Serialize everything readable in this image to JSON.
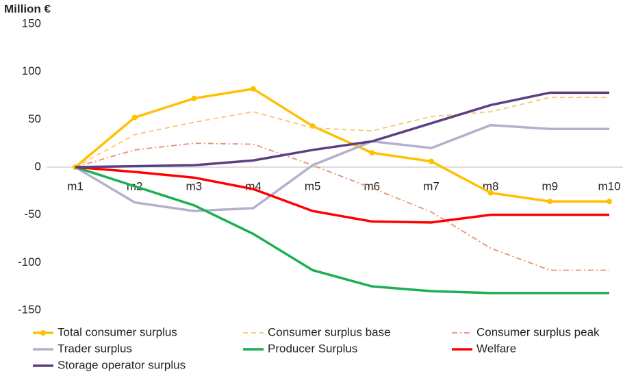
{
  "chart_data": {
    "type": "line",
    "title": "Million €",
    "categories": [
      "m1",
      "m2",
      "m3",
      "m4",
      "m5",
      "m6",
      "m7",
      "m8",
      "m9",
      "m10"
    ],
    "ylim": [
      -150,
      150
    ],
    "yticks": [
      -150,
      -100,
      -50,
      0,
      50,
      100,
      150
    ],
    "grid": false,
    "legend": "bottom",
    "series": [
      {
        "name": "Total consumer surplus",
        "color": "#ffc000",
        "dash": "solid",
        "markers": true,
        "values": [
          0,
          52,
          72,
          82,
          43,
          15,
          6,
          -27,
          -36,
          -36
        ]
      },
      {
        "name": "Consumer surplus base",
        "color": "#f8c86a",
        "dash": "dashed",
        "markers": false,
        "values": [
          0,
          34,
          47,
          58,
          41,
          38,
          53,
          58,
          73,
          73
        ]
      },
      {
        "name": "Consumer surplus peak",
        "color": "#e8907a",
        "dash": "dash-dot",
        "markers": false,
        "values": [
          0,
          18,
          25,
          24,
          2,
          -22,
          -47,
          -85,
          -108,
          -108
        ]
      },
      {
        "name": "Trader surplus",
        "color": "#b4b0cc",
        "dash": "solid",
        "markers": false,
        "values": [
          0,
          -37,
          -46,
          -43,
          2,
          27,
          20,
          44,
          40,
          40
        ]
      },
      {
        "name": "Producer Surplus",
        "color": "#1aaf54",
        "dash": "solid",
        "markers": false,
        "values": [
          0,
          -20,
          -40,
          -70,
          -108,
          -125,
          -130,
          -132,
          -132,
          -132
        ]
      },
      {
        "name": "Welfare",
        "color": "#ff0000",
        "dash": "solid",
        "markers": false,
        "values": [
          0,
          -5,
          -11,
          -23,
          -46,
          -57,
          -58,
          -50,
          -50,
          -50
        ]
      },
      {
        "name": "Storage operator surplus",
        "color": "#5b3f80",
        "dash": "solid",
        "markers": false,
        "values": [
          0,
          1,
          2,
          7,
          18,
          27,
          46,
          65,
          78,
          78
        ]
      }
    ]
  }
}
